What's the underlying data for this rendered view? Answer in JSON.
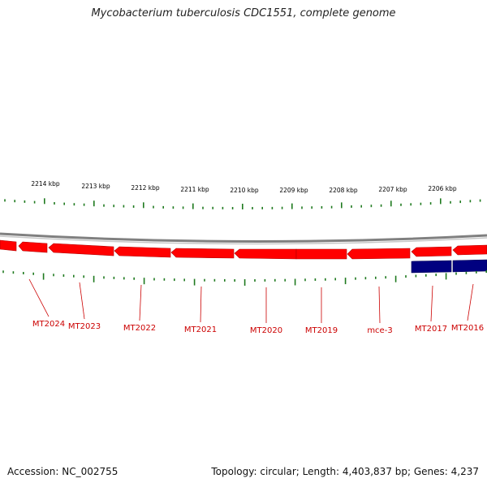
{
  "title": "Mycobacterium tuberculosis CDC1551, complete genome",
  "accession": "Accession: NC_002755",
  "summary": "Topology: circular; Length: 4,403,837 bp; Genes: 4,237",
  "colors": {
    "forward_gene": "#ff0000",
    "reverse_gene": "#000080",
    "ruler": "#1f7a1f",
    "backbone": "#808080",
    "label": "#cc0000"
  },
  "kbp_ticks": [
    "2214 kbp",
    "2213 kbp",
    "2212 kbp",
    "2211 kbp",
    "2210 kbp",
    "2209 kbp",
    "2208 kbp",
    "2207 kbp",
    "2206 kbp"
  ],
  "genes": [
    {
      "label": "MT2024",
      "strand": "outer"
    },
    {
      "label": "MT2023",
      "strand": "outer"
    },
    {
      "label": "MT2022",
      "strand": "outer"
    },
    {
      "label": "MT2021",
      "strand": "outer"
    },
    {
      "label": "MT2020",
      "strand": "outer"
    },
    {
      "label": "MT2019",
      "strand": "outer"
    },
    {
      "label": "mce-3",
      "strand": "outer"
    },
    {
      "label": "MT2017",
      "strand": "outer"
    },
    {
      "label": "MT2016",
      "strand": "inner"
    }
  ]
}
